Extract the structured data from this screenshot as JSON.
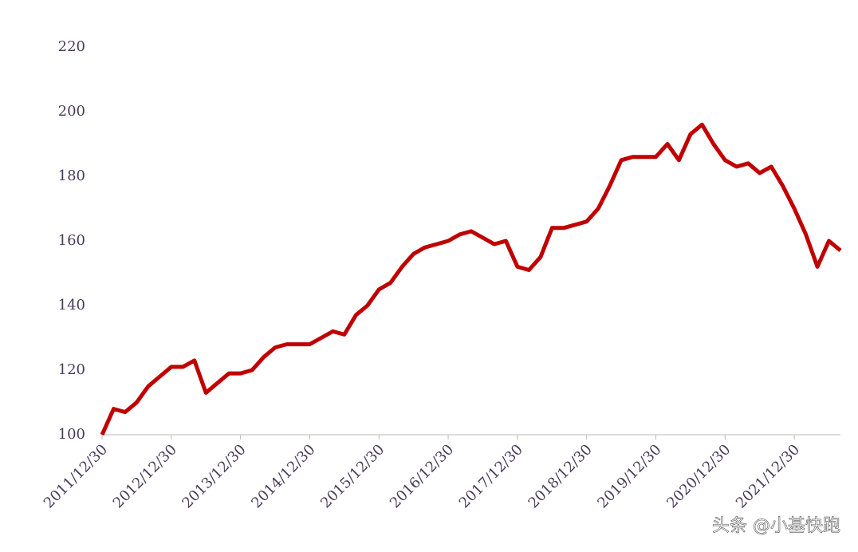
{
  "chart_data": {
    "type": "line",
    "categories": [
      "2011/12/30",
      null,
      null,
      null,
      null,
      null,
      "2012/12/30",
      null,
      null,
      null,
      null,
      null,
      "2013/12/30",
      null,
      null,
      null,
      null,
      null,
      "2014/12/30",
      null,
      null,
      null,
      null,
      null,
      "2015/12/30",
      null,
      null,
      null,
      null,
      null,
      "2016/12/30",
      null,
      null,
      null,
      null,
      null,
      "2017/12/30",
      null,
      null,
      null,
      null,
      null,
      "2018/12/30",
      null,
      null,
      null,
      null,
      null,
      "2019/12/30",
      null,
      null,
      null,
      null,
      null,
      "2020/12/30",
      null,
      null,
      null,
      null,
      null,
      "2021/12/30",
      null,
      null,
      null,
      null
    ],
    "series": [
      {
        "color": "#c00000",
        "values": [
          100,
          108,
          107,
          110,
          115,
          118,
          121,
          121,
          123,
          113,
          116,
          119,
          119,
          120,
          124,
          127,
          128,
          128,
          128,
          130,
          132,
          131,
          137,
          140,
          145,
          147,
          152,
          156,
          158,
          159,
          160,
          162,
          163,
          161,
          159,
          160,
          152,
          151,
          155,
          164,
          164,
          165,
          166,
          170,
          177,
          185,
          186,
          186,
          186,
          190,
          185,
          193,
          196,
          190,
          185,
          183,
          184,
          181,
          183,
          177,
          170,
          162,
          152,
          160,
          157
        ]
      }
    ],
    "ylim": [
      100,
      220
    ],
    "yticks": [
      100,
      120,
      140,
      160,
      180,
      200,
      220
    ],
    "watermark": "头条 @小基快跑"
  }
}
